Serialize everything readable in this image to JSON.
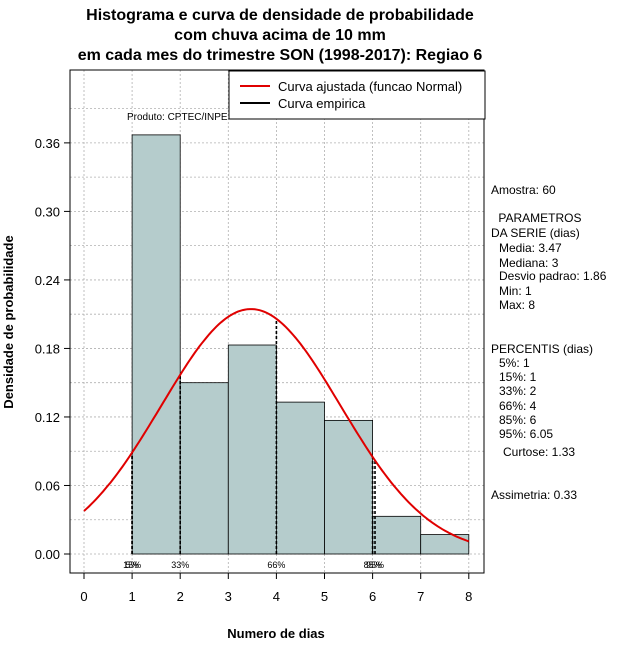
{
  "title_lines": [
    "Histograma e curva de densidade de probabilidade",
    "com chuva acima de 10 mm",
    "em cada mes do trimestre SON (1998-2017): Regiao 6"
  ],
  "produto": "Produto: CPTEC/INPE",
  "colors": {
    "bar": "#b5cccc",
    "fit": "#e00000",
    "empirical": "#000000",
    "grid": "#b0b0b0"
  },
  "sidebar": {
    "amostra": "Amostra: 60",
    "params_header": [
      " PARAMETROS",
      "DA SERIE (dias)"
    ],
    "params": [
      "Media: 3.47",
      "Mediana: 3",
      "Desvio padrao: 1.86",
      "Min: 1",
      "Max: 8"
    ],
    "percentis_header": "PERCENTIS (dias)",
    "percentis": [
      "5%: 1",
      "15%: 1",
      "33%: 2",
      "66%: 4",
      "85%: 6",
      "95%: 6.05"
    ],
    "curtose": "Curtose: 1.33",
    "assimetria": "Assimetria: 0.33"
  },
  "chart_data": {
    "type": "bar",
    "xlabel": "Numero de dias",
    "ylabel": "Densidade de probabilidade",
    "xlim": [
      -0.3,
      8.3
    ],
    "ylim": [
      -0.018,
      0.42
    ],
    "xticks": [
      0,
      1,
      2,
      3,
      4,
      5,
      6,
      7,
      8
    ],
    "yticks": [
      0.0,
      0.06,
      0.12,
      0.18,
      0.24,
      0.3,
      0.36
    ],
    "ytick_labels": [
      "0.00",
      "0.06",
      "0.12",
      "0.18",
      "0.24",
      "0.30",
      "0.36"
    ],
    "grid": true,
    "bins": [
      {
        "x0": 1,
        "x1": 2,
        "value": 0.367
      },
      {
        "x0": 2,
        "x1": 3,
        "value": 0.15
      },
      {
        "x0": 3,
        "x1": 4,
        "value": 0.183
      },
      {
        "x0": 4,
        "x1": 5,
        "value": 0.133
      },
      {
        "x0": 5,
        "x1": 6,
        "value": 0.117
      },
      {
        "x0": 6,
        "x1": 7,
        "value": 0.033
      },
      {
        "x0": 7,
        "x1": 8,
        "value": 0.017
      }
    ],
    "fit_curve": {
      "name": "Curva ajustada (funcao Normal)",
      "distribution": "normal",
      "mean": 3.47,
      "sd": 1.86,
      "x_from": 0,
      "x_to": 8
    },
    "empirical_curve": {
      "name": "Curva empirica"
    },
    "legend_position": "top-right",
    "percentile_markers": [
      {
        "x": 1,
        "label": "5%"
      },
      {
        "x": 1,
        "label": "15%"
      },
      {
        "x": 2,
        "label": "33%"
      },
      {
        "x": 4,
        "label": "66%"
      },
      {
        "x": 6,
        "label": "85%"
      },
      {
        "x": 6.05,
        "label": "95%"
      }
    ]
  }
}
